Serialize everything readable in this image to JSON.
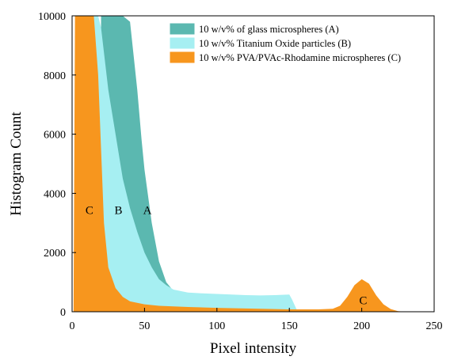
{
  "chart_data": {
    "type": "area",
    "xlabel": "Pixel intensity",
    "ylabel": "Histogram Count",
    "xlim": [
      0,
      250
    ],
    "ylim": [
      0,
      10000
    ],
    "x_ticks": [
      0,
      50,
      100,
      150,
      200,
      250
    ],
    "y_ticks": [
      0,
      2000,
      4000,
      6000,
      8000,
      10000
    ],
    "grid": false,
    "legend_position": "top-right",
    "series": [
      {
        "name": "10 w/v% of glass microspheres (A)",
        "color": "#5bb8b0",
        "x": [
          20,
          30,
          35,
          40,
          45,
          48,
          50,
          55,
          60,
          65,
          70,
          72
        ],
        "y": [
          10000,
          10000,
          10000,
          9800,
          7500,
          5800,
          4800,
          3000,
          1700,
          1000,
          700,
          600
        ]
      },
      {
        "name": "10 w/v% Titanium Oxide particles (B)",
        "color": "#a6eff2",
        "x": [
          15,
          18,
          20,
          25,
          30,
          35,
          40,
          45,
          50,
          55,
          60,
          65,
          70,
          75,
          80,
          90,
          100,
          110,
          120,
          130,
          140,
          150,
          152,
          155,
          160
        ],
        "y": [
          10000,
          10000,
          9600,
          7500,
          6000,
          4500,
          3500,
          2700,
          2000,
          1500,
          1100,
          900,
          750,
          700,
          650,
          620,
          600,
          580,
          560,
          550,
          560,
          580,
          400,
          80,
          0
        ]
      },
      {
        "name": "10 w/v% PVA/PVAc-Rhodamine microspheres (C)",
        "color": "#f7961e",
        "x": [
          0,
          1,
          2,
          3,
          4,
          5,
          10,
          15,
          18,
          20,
          22,
          25,
          30,
          35,
          40,
          50,
          60,
          80,
          100,
          120,
          150,
          170,
          180,
          185,
          190,
          195,
          200,
          205,
          210,
          215,
          220,
          225,
          230
        ],
        "y": [
          0,
          0,
          10000,
          10000,
          10000,
          10000,
          10000,
          10000,
          8000,
          5500,
          3000,
          1500,
          800,
          500,
          350,
          250,
          200,
          160,
          130,
          110,
          80,
          80,
          100,
          200,
          500,
          900,
          1100,
          950,
          550,
          250,
          90,
          20,
          0
        ]
      }
    ],
    "annotations": [
      {
        "text": "C",
        "x": 12,
        "y": 3300
      },
      {
        "text": "B",
        "x": 32,
        "y": 3300
      },
      {
        "text": "A",
        "x": 52,
        "y": 3300
      },
      {
        "text": "C",
        "x": 201,
        "y": 250
      }
    ]
  }
}
